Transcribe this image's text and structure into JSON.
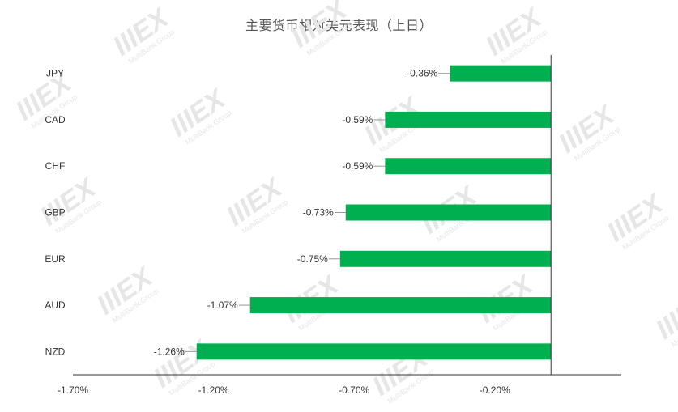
{
  "watermark": {
    "logo_text": "IIIEX",
    "sub_text": "MultiBank Group"
  },
  "chart_data": {
    "type": "bar",
    "orientation": "horizontal",
    "title": "主要货币相对美元表现（上日）",
    "xlabel": "",
    "ylabel": "",
    "categories": [
      "JPY",
      "CAD",
      "CHF",
      "GBP",
      "EUR",
      "AUD",
      "NZD"
    ],
    "values": [
      -0.36,
      -0.59,
      -0.59,
      -0.73,
      -0.75,
      -1.07,
      -1.26
    ],
    "value_labels": [
      "-0.36%",
      "-0.59%",
      "-0.59%",
      "-0.73%",
      "-0.75%",
      "-1.07%",
      "-1.26%"
    ],
    "xlim": [
      -1.7,
      0.25
    ],
    "xticks": [
      -1.7,
      -1.2,
      -0.7,
      -0.2
    ],
    "xtick_labels": [
      "-1.70%",
      "-1.20%",
      "-0.70%",
      "-0.20%"
    ],
    "bar_color": "#00b050",
    "grid": false,
    "legend": "none"
  }
}
